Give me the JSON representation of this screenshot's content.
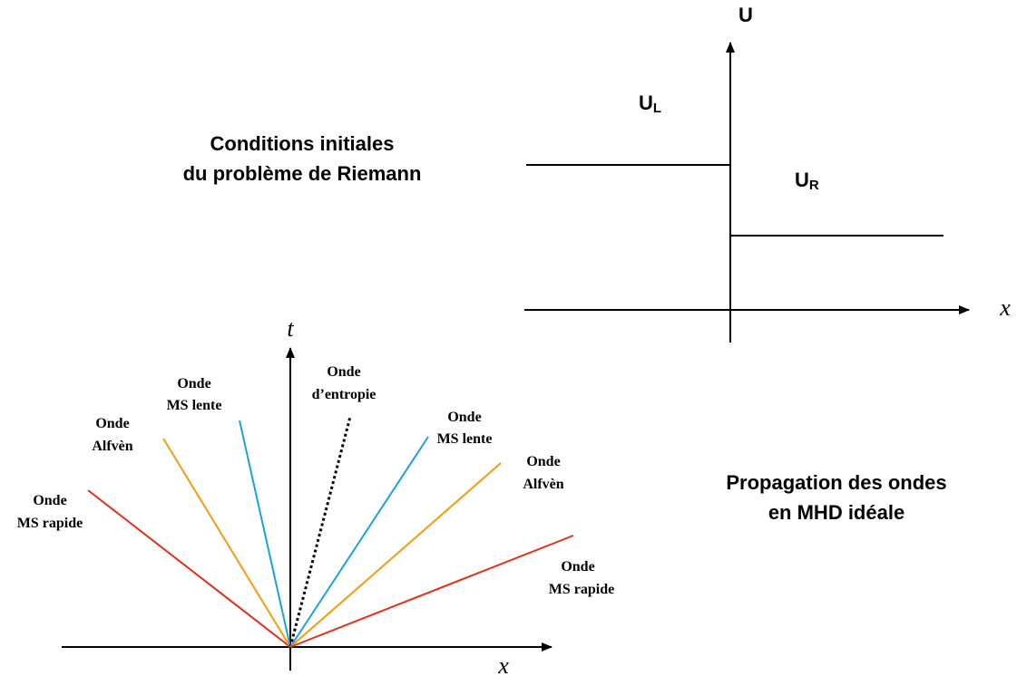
{
  "top_diagram": {
    "caption_line1": "Conditions initiales",
    "caption_line2": "du problème de Riemann",
    "y_axis_label": "U",
    "x_axis_label": "x",
    "left_state": {
      "main": "U",
      "sub": "L"
    },
    "right_state": {
      "main": "U",
      "sub": "R"
    }
  },
  "bottom_diagram": {
    "caption_line1": "Propagation des ondes",
    "caption_line2": "en MHD idéale",
    "t_axis_label": "t",
    "x_axis_label": "x",
    "waves": {
      "fast_left": {
        "line1": "Onde",
        "line2": "MS rapide"
      },
      "alfven_left": {
        "line1": "Onde",
        "line2": "Alfvèn"
      },
      "slow_left": {
        "line1": "Onde",
        "line2": "MS lente"
      },
      "entropy": {
        "line1": "Onde",
        "line2": "d’entropie"
      },
      "slow_right": {
        "line1": "Onde",
        "line2": "MS lente"
      },
      "alfven_right": {
        "line1": "Onde",
        "line2": "Alfvèn"
      },
      "fast_right": {
        "line1": "Onde",
        "line2": "MS rapide"
      }
    }
  },
  "colors": {
    "fast": "#e0301e",
    "alfven": "#f39c12",
    "slow": "#1ba1e2",
    "entropy": "#000000"
  }
}
